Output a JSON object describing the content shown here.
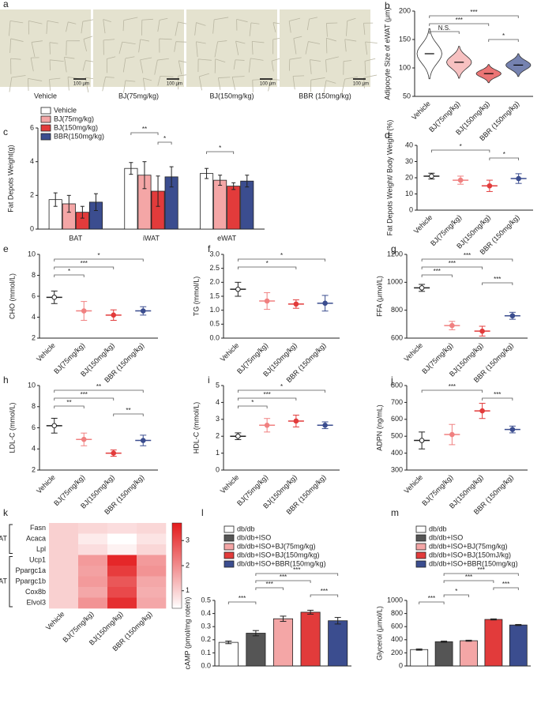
{
  "chart_data": [
    {
      "type": "image",
      "label": "a",
      "categories": [
        "Vehicle",
        "BJ(75mg/kg)",
        "BJ(150mg/kg)",
        "BBR (150mg/kg)"
      ],
      "scale_bar": "100 μm"
    },
    {
      "type": "violin",
      "label": "b",
      "ylabel": "Adipocyte Size of eWAT (μm)",
      "categories": [
        "Vehicle",
        "BJ(75mg/kg)",
        "BJ(150mg/kg)",
        "BBR (150mg/kg)"
      ],
      "values": [
        125,
        110,
        90,
        105
      ],
      "errors": [
        22,
        14,
        8,
        10
      ],
      "colors": [
        "#ffffff",
        "#f4a6a6",
        "#e23b3b",
        "#3b4d8f"
      ],
      "ylim": [
        50,
        200
      ],
      "yticks": [
        50,
        100,
        150,
        200
      ],
      "brackets": [
        {
          "from": 0,
          "to": 3,
          "label": "***"
        },
        {
          "from": 0,
          "to": 2,
          "label": "***"
        },
        {
          "from": 0,
          "to": 1,
          "label": "N.S."
        },
        {
          "from": 2,
          "to": 3,
          "label": "*"
        }
      ]
    },
    {
      "type": "groupbar",
      "label": "c",
      "ylabel": "Fat Depots Weight(g)",
      "categories": [
        "BAT",
        "iWAT",
        "eWAT"
      ],
      "series": [
        {
          "name": "Vehicle",
          "color": "#ffffff",
          "values": [
            1.75,
            3.6,
            3.3
          ],
          "errors": [
            0.4,
            0.35,
            0.3
          ]
        },
        {
          "name": "BJ(75mg/kg)",
          "color": "#f4a6a6",
          "values": [
            1.5,
            3.2,
            2.9
          ],
          "errors": [
            0.5,
            0.8,
            0.3
          ]
        },
        {
          "name": "BJ(150mg/kg)",
          "color": "#e23b3b",
          "values": [
            1.0,
            2.25,
            2.55
          ],
          "errors": [
            0.35,
            0.9,
            0.2
          ]
        },
        {
          "name": "BBR(150mg/kg)",
          "color": "#3b4d8f",
          "values": [
            1.6,
            3.1,
            2.85
          ],
          "errors": [
            0.5,
            0.6,
            0.35
          ]
        }
      ],
      "ylim": [
        0,
        6
      ],
      "yticks": [
        0,
        2,
        4,
        6
      ],
      "brackets": [
        {
          "group": 1,
          "from": 0,
          "to": 2,
          "label": "**"
        },
        {
          "group": 1,
          "from": 2,
          "to": 3,
          "label": "*"
        },
        {
          "group": 2,
          "from": 0,
          "to": 2,
          "label": "*"
        }
      ]
    },
    {
      "type": "dot",
      "label": "d",
      "ylabel": "Fat Depots Weight/ Body Weight (%)",
      "categories": [
        "Vehicle",
        "BJ(75mg/kg)",
        "BJ(150mg/kg)",
        "BBR (150mg/kg)"
      ],
      "values": [
        21,
        18.5,
        15,
        19.5
      ],
      "errors": [
        1.8,
        2.5,
        3.5,
        3
      ],
      "colors": [
        "#222222",
        "#f08080",
        "#e23b3b",
        "#3b4d8f"
      ],
      "ylim": [
        0,
        40
      ],
      "yticks": [
        0,
        10,
        20,
        30,
        40
      ],
      "brackets": [
        {
          "from": 0,
          "to": 2,
          "label": "*"
        },
        {
          "from": 2,
          "to": 3,
          "label": "*"
        }
      ]
    },
    {
      "type": "dot",
      "label": "e",
      "ylabel": "CHO (mmol/L)",
      "categories": [
        "Vehicle",
        "BJ(75mg/kg)",
        "BJ(150mg/kg)",
        "BBR (150mg/kg)"
      ],
      "values": [
        5.9,
        4.6,
        4.2,
        4.6
      ],
      "errors": [
        0.6,
        0.9,
        0.5,
        0.4
      ],
      "colors": [
        "#222222",
        "#f08080",
        "#e23b3b",
        "#3b4d8f"
      ],
      "ylim": [
        2,
        10
      ],
      "yticks": [
        2,
        4,
        6,
        8,
        10
      ],
      "brackets": [
        {
          "from": 0,
          "to": 3,
          "label": "*"
        },
        {
          "from": 0,
          "to": 2,
          "label": "***"
        },
        {
          "from": 0,
          "to": 1,
          "label": "*"
        }
      ]
    },
    {
      "type": "dot",
      "label": "f",
      "ylabel": "TG (mmol/L)",
      "categories": [
        "Vehicle",
        "BJ(75mg/kg)",
        "BJ(150mg/kg)",
        "BBR (150mg/kg)"
      ],
      "values": [
        1.75,
        1.33,
        1.22,
        1.25
      ],
      "errors": [
        0.25,
        0.3,
        0.15,
        0.28
      ],
      "colors": [
        "#222222",
        "#f08080",
        "#e23b3b",
        "#3b4d8f"
      ],
      "ylim": [
        0,
        3
      ],
      "yticks": [
        {
          "value": 0,
          "label": "0.0"
        },
        0.5,
        {
          "value": 1,
          "label": "1.0"
        },
        1.5,
        {
          "value": 2,
          "label": "2.0"
        },
        2.5,
        {
          "value": 3,
          "label": "3.0"
        }
      ],
      "brackets": [
        {
          "from": 0,
          "to": 3,
          "label": "*"
        },
        {
          "from": 0,
          "to": 2,
          "label": "*"
        }
      ]
    },
    {
      "type": "dot",
      "label": "g",
      "ylabel": "FFA (μmol/L)",
      "categories": [
        "Vehicle",
        "BJ(75mg/kg)",
        "BJ(150mg/kg)",
        "BBR (150mg/kg)"
      ],
      "values": [
        960,
        690,
        650,
        760
      ],
      "errors": [
        25,
        30,
        35,
        25
      ],
      "colors": [
        "#222222",
        "#f08080",
        "#e23b3b",
        "#3b4d8f"
      ],
      "ylim": [
        600,
        1200
      ],
      "yticks": [
        600,
        800,
        1000,
        1200
      ],
      "brackets": [
        {
          "from": 0,
          "to": 3,
          "label": "***"
        },
        {
          "from": 0,
          "to": 2,
          "label": "***"
        },
        {
          "from": 0,
          "to": 1,
          "label": "***"
        },
        {
          "from": 2,
          "to": 3,
          "label": "***"
        }
      ]
    },
    {
      "type": "dot",
      "label": "h",
      "ylabel": "LDL-C (mmol/L)",
      "categories": [
        "Vehicle",
        "BJ(75mg/kg)",
        "BJ(150mg/kg)",
        "BBR (150mg/kg)"
      ],
      "values": [
        6.2,
        4.9,
        3.6,
        4.8
      ],
      "errors": [
        0.7,
        0.6,
        0.3,
        0.5
      ],
      "colors": [
        "#222222",
        "#f08080",
        "#e23b3b",
        "#3b4d8f"
      ],
      "ylim": [
        2,
        10
      ],
      "yticks": [
        2,
        4,
        6,
        8,
        10
      ],
      "brackets": [
        {
          "from": 0,
          "to": 3,
          "label": "**"
        },
        {
          "from": 0,
          "to": 2,
          "label": "***"
        },
        {
          "from": 0,
          "to": 1,
          "label": "**"
        },
        {
          "from": 2,
          "to": 3,
          "label": "**"
        }
      ]
    },
    {
      "type": "dot",
      "label": "i",
      "ylabel": "HDL-C (mmol/L)",
      "categories": [
        "Vehicle",
        "BJ(75mg/kg)",
        "BJ(150mg/kg)",
        "BBR (150mg/kg)"
      ],
      "values": [
        2.0,
        2.65,
        2.9,
        2.65
      ],
      "errors": [
        0.2,
        0.4,
        0.35,
        0.2
      ],
      "colors": [
        "#222222",
        "#f08080",
        "#e23b3b",
        "#3b4d8f"
      ],
      "ylim": [
        0,
        5
      ],
      "yticks": [
        0,
        1,
        2,
        3,
        4,
        5
      ],
      "brackets": [
        {
          "from": 0,
          "to": 3,
          "label": "*"
        },
        {
          "from": 0,
          "to": 2,
          "label": "***"
        },
        {
          "from": 0,
          "to": 1,
          "label": "*"
        }
      ]
    },
    {
      "type": "dot",
      "label": "j",
      "ylabel": "ADPN (ng/mL)",
      "categories": [
        "Vehicle",
        "BJ(75mg/kg)",
        "BJ(150mg/kg)",
        "BBR (150mg/kg)"
      ],
      "values": [
        475,
        510,
        650,
        540
      ],
      "errors": [
        50,
        60,
        45,
        20
      ],
      "colors": [
        "#222222",
        "#f08080",
        "#e23b3b",
        "#3b4d8f"
      ],
      "ylim": [
        300,
        800
      ],
      "yticks": [
        300,
        400,
        500,
        600,
        700,
        800
      ],
      "brackets": [
        {
          "from": 0,
          "to": 2,
          "label": "***"
        },
        {
          "from": 2,
          "to": 3,
          "label": "***"
        }
      ]
    },
    {
      "type": "heatmap",
      "label": "k",
      "categories": [
        "Vehicle",
        "BJ(75mg/kg)",
        "BJ(150mg/kg)",
        "BBR (150mg/kg)"
      ],
      "rows": [
        "Fasn",
        "Acaca",
        "Lpl",
        "Ucp1",
        "Ppargc1a",
        "Ppargc1b",
        "Cox8b",
        "Elvol3"
      ],
      "row_groups": [
        {
          "name": "eWAT",
          "from": 0,
          "to": 2
        },
        {
          "name": "BAT",
          "from": 3,
          "to": 7
        }
      ],
      "values": [
        [
          1.0,
          0.9,
          0.8,
          0.9
        ],
        [
          1.0,
          0.6,
          0.3,
          0.7
        ],
        [
          1.0,
          0.8,
          0.5,
          0.9
        ],
        [
          1.0,
          1.8,
          3.5,
          1.8
        ],
        [
          1.0,
          1.7,
          3.2,
          1.9
        ],
        [
          1.0,
          1.8,
          2.8,
          1.6
        ],
        [
          1.0,
          1.6,
          3.0,
          1.5
        ],
        [
          1.0,
          1.9,
          3.4,
          1.6
        ]
      ],
      "color": "#e31a1c",
      "clim": [
        0.3,
        3.7
      ],
      "cticks": [
        1,
        2,
        3
      ]
    },
    {
      "type": "bar",
      "label": "l",
      "ylabel": "cAMP (pmol/mg rotein)",
      "series": [
        {
          "name": "db/db",
          "color": "#ffffff",
          "values": [
            0.18
          ],
          "errors": [
            0.01
          ]
        },
        {
          "name": "db/db+ISO",
          "color": "#555555",
          "values": [
            0.25
          ],
          "errors": [
            0.02
          ]
        },
        {
          "name": "db/db+ISO+BJ(75mg/kg)",
          "color": "#f4a6a6",
          "values": [
            0.36
          ],
          "errors": [
            0.02
          ]
        },
        {
          "name": "db/db+ISO+BJ(150mg/kg)",
          "color": "#e23b3b",
          "values": [
            0.41
          ],
          "errors": [
            0.015
          ]
        },
        {
          "name": "db/db+ISO+BBR(150mg/kg)",
          "color": "#3b4d8f",
          "values": [
            0.345
          ],
          "errors": [
            0.025
          ]
        }
      ],
      "ylim": [
        0,
        0.5
      ],
      "yticks": [
        {
          "value": 0,
          "label": "0.0"
        },
        0.1,
        0.2,
        0.3,
        0.4,
        0.5
      ],
      "brackets": [
        {
          "from": 1,
          "to": 4,
          "label": "***"
        },
        {
          "from": 1,
          "to": 3,
          "label": "***"
        },
        {
          "from": 1,
          "to": 2,
          "label": "***"
        },
        {
          "from": 3,
          "to": 4,
          "label": "***"
        },
        {
          "from": 0,
          "to": 1,
          "label": "***"
        }
      ]
    },
    {
      "type": "bar",
      "label": "m",
      "ylabel": "Glycerol (μmol/L)",
      "series": [
        {
          "name": "db/db",
          "color": "#ffffff",
          "values": [
            250
          ],
          "errors": [
            10
          ]
        },
        {
          "name": "db/db+ISO",
          "color": "#555555",
          "values": [
            370
          ],
          "errors": [
            10
          ]
        },
        {
          "name": "db/db+ISO+BJ(75mg/kg)",
          "color": "#f4a6a6",
          "values": [
            385
          ],
          "errors": [
            8
          ]
        },
        {
          "name": "db/db+ISO+BJ(150mJ/kg)",
          "color": "#e23b3b",
          "values": [
            710
          ],
          "errors": [
            8
          ]
        },
        {
          "name": "db/db+ISO+BBR(150mg/kg)",
          "color": "#3b4d8f",
          "values": [
            625
          ],
          "errors": [
            8
          ]
        }
      ],
      "ylim": [
        0,
        1000
      ],
      "yticks": [
        0,
        200,
        400,
        600,
        800,
        1000
      ],
      "brackets": [
        {
          "from": 1,
          "to": 4,
          "label": "***"
        },
        {
          "from": 1,
          "to": 3,
          "label": "***"
        },
        {
          "from": 3,
          "to": 4,
          "label": "***"
        },
        {
          "from": 1,
          "to": 2,
          "label": "*"
        },
        {
          "from": 0,
          "to": 1,
          "label": "***"
        }
      ]
    }
  ]
}
